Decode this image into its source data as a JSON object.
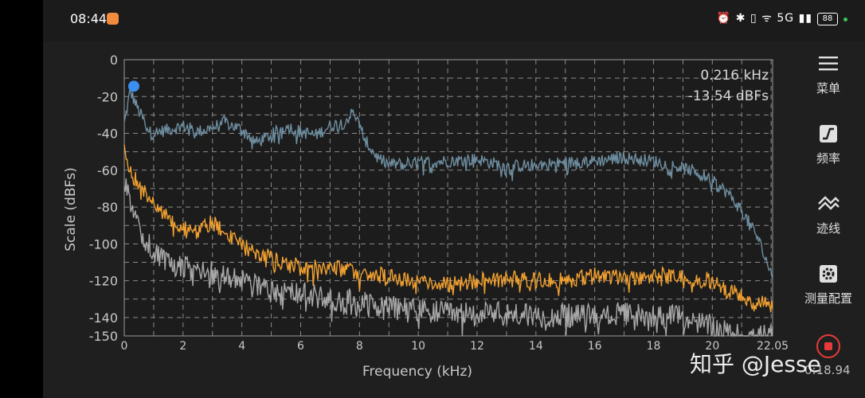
{
  "status_bar": {
    "time": "08:44",
    "icons": "⏰ ✱ ▯ ᯤ 5G ▮▮",
    "battery": "88"
  },
  "readout": {
    "frequency": "0.216 kHz",
    "level": "-13.54 dBFs"
  },
  "sidebar": {
    "menu_label": "菜单",
    "frequency_label": "频率",
    "trace_label": "迹线",
    "measure_label": "测量配置"
  },
  "elapsed": "0:18.94",
  "watermark": "知乎 @Jesse",
  "colors": {
    "background": "#1f1f1f",
    "grid": "#8a8a8a",
    "series_max": "#6e8ea0",
    "series_avg": "#f0a030",
    "series_inst": "#a8a8a8",
    "marker": "#3b8ff0"
  },
  "chart_data": {
    "type": "line",
    "xlabel": "Frequency (kHz)",
    "ylabel": "Scale (dBFs)",
    "xlim": [
      0,
      22.05
    ],
    "ylim": [
      -150,
      0
    ],
    "x_ticks": [
      "0",
      "2",
      "4",
      "6",
      "8",
      "10",
      "12",
      "14",
      "16",
      "18",
      "20",
      "22.05"
    ],
    "y_ticks": [
      "0",
      "-20",
      "-40",
      "-60",
      "-80",
      "-100",
      "-120",
      "-140",
      "-150"
    ],
    "grid": true,
    "marker": {
      "x": 0.216,
      "y": -13.54
    },
    "series": [
      {
        "color": "#6e8ea0",
        "x": [
          0.0,
          0.2,
          0.5,
          0.9,
          1.5,
          2.0,
          2.5,
          3.0,
          3.4,
          4.0,
          4.5,
          5.0,
          5.5,
          6.0,
          6.5,
          7.0,
          7.5,
          7.8,
          8.2,
          8.6,
          9.0,
          10.0,
          11.0,
          12.0,
          13.0,
          14.0,
          15.0,
          16.0,
          17.0,
          18.0,
          19.0,
          19.5,
          20.0,
          20.5,
          21.0,
          21.5,
          22.05
        ],
        "y": [
          -35,
          -17,
          -28,
          -40,
          -38,
          -36,
          -39,
          -37,
          -34,
          -38,
          -45,
          -41,
          -36,
          -39,
          -41,
          -36,
          -34,
          -28,
          -44,
          -53,
          -57,
          -56,
          -55,
          -54,
          -58,
          -57,
          -56,
          -55,
          -53,
          -55,
          -59,
          -61,
          -66,
          -72,
          -82,
          -95,
          -118
        ]
      },
      {
        "color": "#f0a030",
        "x": [
          0.0,
          0.3,
          0.6,
          1.0,
          1.5,
          2.0,
          2.5,
          3.0,
          3.5,
          4.0,
          5.0,
          6.0,
          7.0,
          8.0,
          9.0,
          10.0,
          11.0,
          12.0,
          13.0,
          14.0,
          15.0,
          16.0,
          17.0,
          18.0,
          19.0,
          19.5,
          20.0,
          20.5,
          21.0,
          21.5,
          22.05
        ],
        "y": [
          -50,
          -63,
          -70,
          -77,
          -87,
          -92,
          -93,
          -88,
          -96,
          -101,
          -108,
          -112,
          -113,
          -115,
          -118,
          -120,
          -122,
          -120,
          -119,
          -120,
          -120,
          -117,
          -118,
          -117,
          -118,
          -119,
          -120,
          -125,
          -128,
          -132,
          -134
        ]
      },
      {
        "color": "#a8a8a8",
        "x": [
          0.0,
          0.3,
          0.6,
          1.0,
          1.5,
          2.0,
          3.0,
          4.0,
          5.0,
          6.0,
          7.0,
          8.0,
          9.0,
          10.0,
          11.0,
          12.0,
          13.0,
          14.0,
          15.0,
          16.0,
          17.0,
          18.0,
          19.0,
          20.0,
          20.5,
          21.0,
          21.5,
          22.05
        ],
        "y": [
          -65,
          -82,
          -95,
          -104,
          -110,
          -113,
          -116,
          -120,
          -125,
          -127,
          -130,
          -131,
          -134,
          -136,
          -138,
          -138,
          -138,
          -139,
          -139,
          -139,
          -138,
          -139,
          -140,
          -145,
          -148,
          -150,
          -150,
          -150
        ]
      }
    ]
  }
}
